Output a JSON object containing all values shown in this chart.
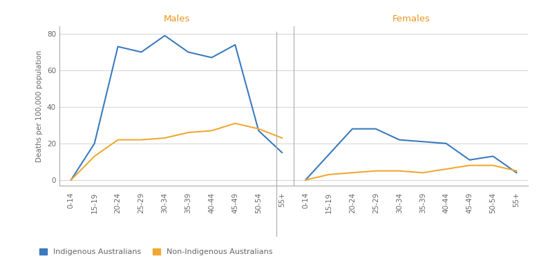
{
  "age_groups": [
    "0-14",
    "15-19",
    "20-24",
    "25-29",
    "30-34",
    "35-39",
    "40-44",
    "45-49",
    "50-54",
    "55+"
  ],
  "males_indigenous": [
    0,
    20,
    73,
    70,
    79,
    70,
    67,
    74,
    27,
    15
  ],
  "males_nonindigenous": [
    0,
    13,
    22,
    22,
    23,
    26,
    27,
    31,
    28,
    23
  ],
  "females_indigenous": [
    0,
    14,
    28,
    28,
    22,
    21,
    20,
    11,
    13,
    4
  ],
  "females_nonindigenous": [
    0,
    3,
    4,
    5,
    5,
    4,
    6,
    8,
    8,
    5
  ],
  "color_indigenous": "#3a7abf",
  "color_nonindigenous": "#f0a830",
  "ylabel": "Deaths per 100,000 population",
  "ylim": [
    -3,
    84
  ],
  "yticks": [
    0,
    20,
    40,
    60,
    80
  ],
  "title_males": "Males",
  "title_females": "Females",
  "legend_indigenous": "Indigenous Australians",
  "legend_nonindigenous": "Non-Indigenous Australians",
  "title_color": "#e8951c",
  "background_color": "#ffffff",
  "grid_color": "#cccccc",
  "spine_color": "#aaaaaa",
  "tick_color": "#666666"
}
